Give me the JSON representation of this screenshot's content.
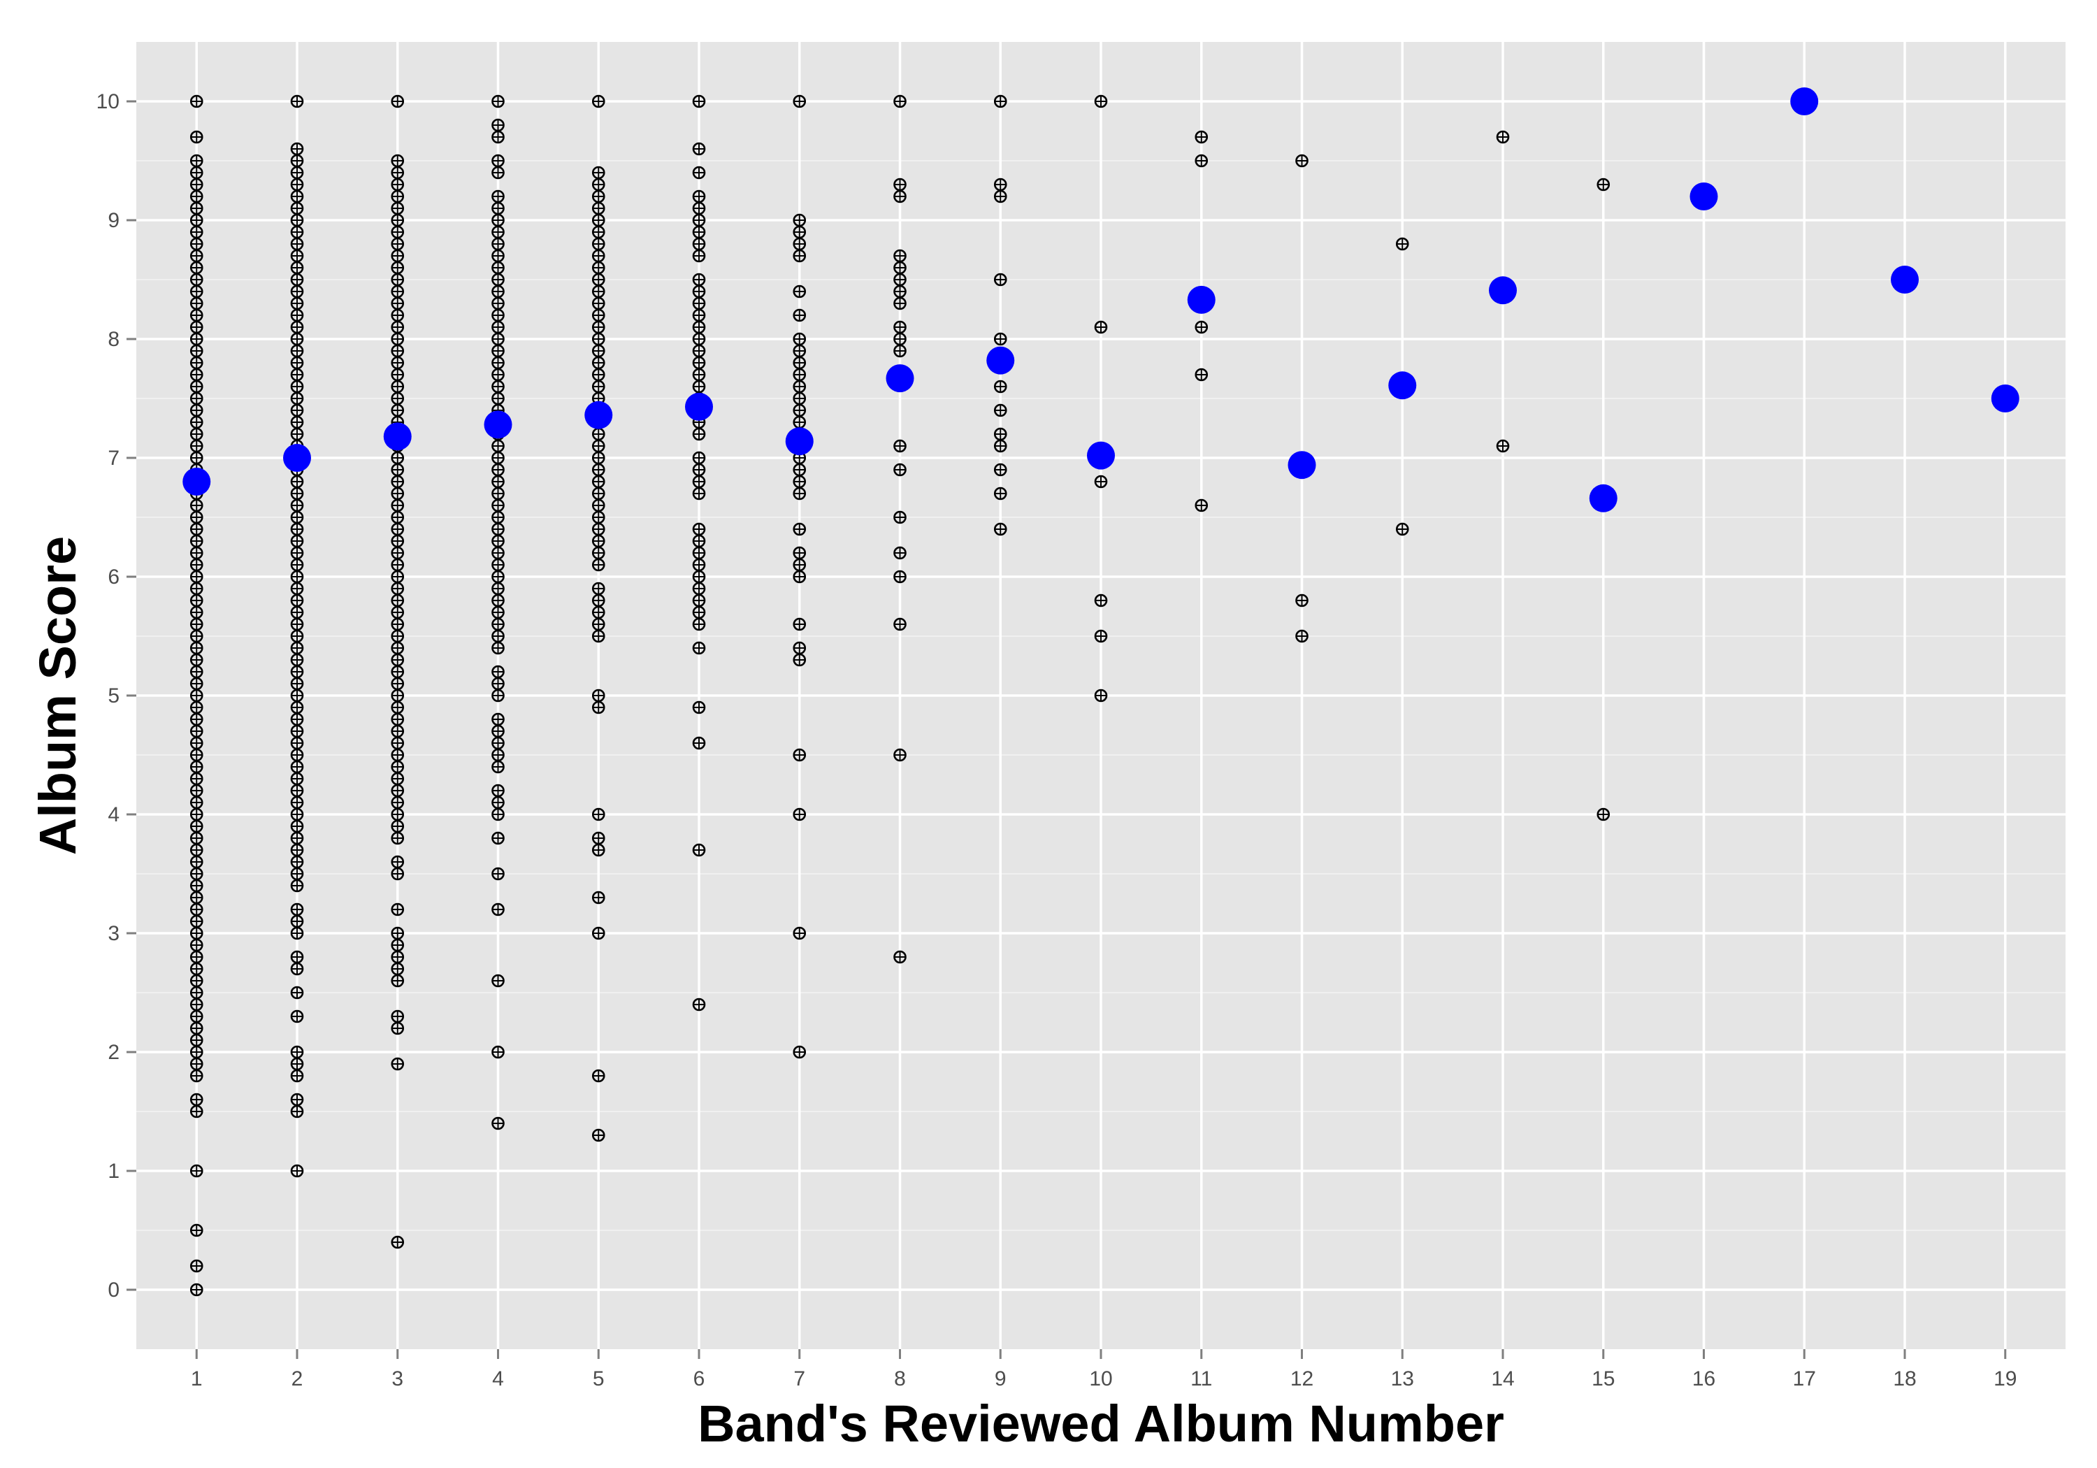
{
  "chart_data": {
    "type": "scatter",
    "title": "",
    "xlabel": "Band's Reviewed Album Number",
    "ylabel": "Album Score",
    "xlim": [
      0.4,
      19.6
    ],
    "ylim": [
      -0.5,
      10.5
    ],
    "x_ticks": [
      1,
      2,
      3,
      4,
      5,
      6,
      7,
      8,
      9,
      10,
      11,
      12,
      13,
      14,
      15,
      16,
      17,
      18,
      19
    ],
    "y_ticks": [
      0,
      1,
      2,
      3,
      4,
      5,
      6,
      7,
      8,
      9,
      10
    ],
    "grid": true,
    "legend": "none",
    "colors": {
      "panel": "#e5e5e5",
      "grid": "#ffffff",
      "points": "#000000",
      "means": "#0000ff"
    },
    "series": [
      {
        "kind": "individual-scores",
        "points": {
          "1": [
            10,
            9.7,
            9.5,
            9.4,
            9.3,
            9.2,
            9.1,
            9.0,
            8.9,
            8.8,
            8.7,
            8.6,
            8.5,
            8.4,
            8.3,
            8.2,
            8.1,
            8.0,
            7.9,
            7.8,
            7.7,
            7.6,
            7.5,
            7.4,
            7.3,
            7.2,
            7.1,
            7.0,
            6.9,
            6.8,
            6.7,
            6.6,
            6.5,
            6.4,
            6.3,
            6.2,
            6.1,
            6.0,
            5.9,
            5.8,
            5.7,
            5.6,
            5.5,
            5.4,
            5.3,
            5.2,
            5.1,
            5.0,
            4.9,
            4.8,
            4.7,
            4.6,
            4.5,
            4.4,
            4.3,
            4.2,
            4.1,
            4.0,
            3.9,
            3.8,
            3.7,
            3.6,
            3.5,
            3.4,
            3.3,
            3.2,
            3.1,
            3.0,
            2.9,
            2.8,
            2.7,
            2.6,
            2.5,
            2.4,
            2.3,
            2.2,
            2.1,
            2.0,
            1.9,
            1.8,
            1.6,
            1.5,
            1.0,
            0.5,
            0.2,
            0.0
          ],
          "2": [
            10,
            9.6,
            9.5,
            9.4,
            9.3,
            9.2,
            9.1,
            9.0,
            8.9,
            8.8,
            8.7,
            8.6,
            8.5,
            8.4,
            8.3,
            8.2,
            8.1,
            8.0,
            7.9,
            7.8,
            7.7,
            7.6,
            7.5,
            7.4,
            7.3,
            7.2,
            7.1,
            7.0,
            6.9,
            6.8,
            6.7,
            6.6,
            6.5,
            6.4,
            6.3,
            6.2,
            6.1,
            6.0,
            5.9,
            5.8,
            5.7,
            5.6,
            5.5,
            5.4,
            5.3,
            5.2,
            5.1,
            5.0,
            4.9,
            4.8,
            4.7,
            4.6,
            4.5,
            4.4,
            4.3,
            4.2,
            4.1,
            4.0,
            3.9,
            3.8,
            3.7,
            3.6,
            3.5,
            3.4,
            3.2,
            3.1,
            3.0,
            2.8,
            2.7,
            2.5,
            2.3,
            2.0,
            1.9,
            1.8,
            1.6,
            1.5,
            1.0
          ],
          "3": [
            10,
            9.5,
            9.4,
            9.3,
            9.2,
            9.1,
            9.0,
            8.9,
            8.8,
            8.7,
            8.6,
            8.5,
            8.4,
            8.3,
            8.2,
            8.1,
            8.0,
            7.9,
            7.8,
            7.7,
            7.6,
            7.5,
            7.4,
            7.3,
            7.2,
            7.1,
            7.0,
            6.9,
            6.8,
            6.7,
            6.6,
            6.5,
            6.4,
            6.3,
            6.2,
            6.1,
            6.0,
            5.9,
            5.8,
            5.7,
            5.6,
            5.5,
            5.4,
            5.3,
            5.2,
            5.1,
            5.0,
            4.9,
            4.8,
            4.7,
            4.6,
            4.5,
            4.4,
            4.3,
            4.2,
            4.1,
            4.0,
            3.9,
            3.8,
            3.6,
            3.5,
            3.2,
            3.0,
            2.9,
            2.8,
            2.7,
            2.6,
            2.3,
            2.2,
            1.9,
            0.4
          ],
          "4": [
            10,
            9.8,
            9.7,
            9.5,
            9.4,
            9.2,
            9.1,
            9.0,
            8.9,
            8.8,
            8.7,
            8.6,
            8.5,
            8.4,
            8.3,
            8.2,
            8.1,
            8.0,
            7.9,
            7.8,
            7.7,
            7.6,
            7.5,
            7.4,
            7.3,
            7.2,
            7.1,
            7.0,
            6.9,
            6.8,
            6.7,
            6.6,
            6.5,
            6.4,
            6.3,
            6.2,
            6.1,
            6.0,
            5.9,
            5.8,
            5.7,
            5.6,
            5.5,
            5.4,
            5.2,
            5.1,
            5.0,
            4.8,
            4.7,
            4.6,
            4.5,
            4.4,
            4.2,
            4.1,
            4.0,
            3.8,
            3.5,
            3.2,
            2.6,
            2.0,
            1.4
          ],
          "5": [
            10,
            9.4,
            9.3,
            9.2,
            9.1,
            9.0,
            8.9,
            8.8,
            8.7,
            8.6,
            8.5,
            8.4,
            8.3,
            8.2,
            8.1,
            8.0,
            7.9,
            7.8,
            7.7,
            7.6,
            7.5,
            7.4,
            7.3,
            7.2,
            7.1,
            7.0,
            6.9,
            6.8,
            6.7,
            6.6,
            6.5,
            6.4,
            6.3,
            6.2,
            6.1,
            5.9,
            5.8,
            5.7,
            5.6,
            5.5,
            5.0,
            4.9,
            4.0,
            3.8,
            3.7,
            3.3,
            3.0,
            1.8,
            1.3
          ],
          "6": [
            10,
            9.6,
            9.4,
            9.2,
            9.1,
            9.0,
            8.9,
            8.8,
            8.7,
            8.5,
            8.4,
            8.3,
            8.2,
            8.1,
            8.0,
            7.9,
            7.8,
            7.7,
            7.6,
            7.5,
            7.4,
            7.3,
            7.2,
            7.0,
            6.9,
            6.8,
            6.7,
            6.4,
            6.3,
            6.2,
            6.1,
            6.0,
            5.9,
            5.8,
            5.7,
            5.6,
            5.4,
            4.9,
            4.6,
            3.7,
            2.4
          ],
          "7": [
            10,
            9.0,
            8.9,
            8.8,
            8.7,
            8.4,
            8.2,
            8.0,
            7.9,
            7.8,
            7.7,
            7.6,
            7.5,
            7.4,
            7.3,
            7.2,
            7.1,
            7.0,
            6.9,
            6.8,
            6.7,
            6.4,
            6.2,
            6.1,
            6.0,
            5.6,
            5.4,
            5.3,
            4.5,
            4.0,
            3.0,
            2.0
          ],
          "8": [
            10,
            9.3,
            9.2,
            8.7,
            8.6,
            8.5,
            8.4,
            8.3,
            8.1,
            8.0,
            7.9,
            7.1,
            6.9,
            6.5,
            6.2,
            6.0,
            5.6,
            4.5,
            2.8
          ],
          "9": [
            10,
            9.3,
            9.2,
            8.5,
            8.0,
            7.6,
            7.4,
            7.2,
            7.1,
            6.9,
            6.7,
            6.4
          ],
          "10": [
            10,
            8.1,
            6.8,
            5.8,
            5.5,
            5.0
          ],
          "11": [
            9.7,
            9.5,
            8.1,
            7.7,
            6.6
          ],
          "12": [
            9.5,
            5.8,
            5.5
          ],
          "13": [
            8.8,
            6.4
          ],
          "14": [
            9.7,
            7.1
          ],
          "15": [
            9.3,
            4.0
          ]
        }
      },
      {
        "kind": "mean-score",
        "x": [
          1,
          2,
          3,
          4,
          5,
          6,
          7,
          8,
          9,
          10,
          11,
          12,
          13,
          14,
          15,
          16,
          17,
          18,
          19
        ],
        "y": [
          6.8,
          7.0,
          7.18,
          7.28,
          7.36,
          7.43,
          7.14,
          7.67,
          7.82,
          7.02,
          8.33,
          6.94,
          7.61,
          8.41,
          6.66,
          9.2,
          10.0,
          8.5,
          7.5
        ]
      }
    ]
  }
}
